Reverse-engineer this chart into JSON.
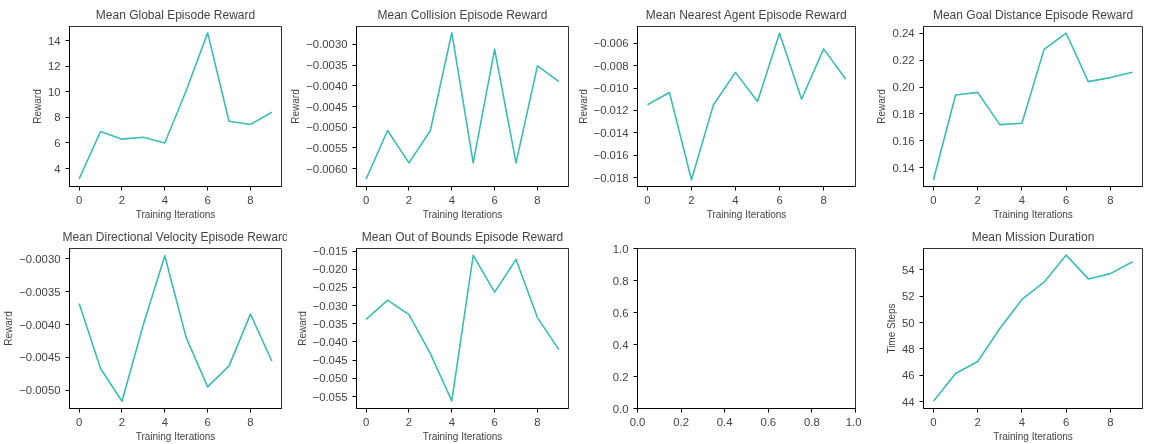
{
  "chart_data": [
    {
      "type": "line",
      "title": "Mean Global Episode Reward",
      "xlabel": "Training Iterations",
      "ylabel": "Reward",
      "x": [
        0,
        1,
        2,
        3,
        4,
        5,
        6,
        7,
        8,
        9
      ],
      "series": [
        {
          "color": "#3bbdb5",
          "values": [
            3.2,
            6.9,
            6.3,
            6.45,
            6.0,
            10.1,
            14.6,
            7.7,
            7.45,
            8.4
          ]
        }
      ],
      "xlim": [
        -0.45,
        9.45
      ],
      "ylim": [
        2.6,
        15.1
      ],
      "xticks": [
        0,
        2,
        4,
        6,
        8
      ],
      "yticks": [
        4,
        6,
        8,
        10,
        12,
        14
      ],
      "grid": false
    },
    {
      "type": "line",
      "title": "Mean Collision Episode Reward",
      "xlabel": "Training Iterations",
      "ylabel": "Reward",
      "x": [
        0,
        1,
        2,
        3,
        4,
        5,
        6,
        7,
        8,
        9
      ],
      "series": [
        {
          "color": "#3bbdb5",
          "values": [
            -0.00625,
            -0.00508,
            -0.00586,
            -0.00508,
            -0.00272,
            -0.00586,
            -0.00312,
            -0.00586,
            -0.00352,
            -0.0039
          ]
        }
      ],
      "xlim": [
        -0.45,
        9.45
      ],
      "ylim": [
        -0.00643,
        -0.00257
      ],
      "xticks": [
        0,
        2,
        4,
        6,
        8
      ],
      "yticks": [
        {
          "value": -0.006,
          "label": "−0.0060"
        },
        {
          "value": -0.0055,
          "label": "−0.0055"
        },
        {
          "value": -0.005,
          "label": "−0.0050"
        },
        {
          "value": -0.0045,
          "label": "−0.0045"
        },
        {
          "value": -0.004,
          "label": "−0.0040"
        },
        {
          "value": -0.0035,
          "label": "−0.0035"
        },
        {
          "value": -0.003,
          "label": "−0.0030"
        }
      ],
      "grid": false
    },
    {
      "type": "line",
      "title": "Mean Nearest Agent Episode Reward",
      "xlabel": "Training Iterations",
      "ylabel": "Reward",
      "x": [
        0,
        1,
        2,
        3,
        4,
        5,
        6,
        7,
        8,
        9
      ],
      "series": [
        {
          "color": "#3bbdb5",
          "values": [
            -0.0115,
            -0.0104,
            -0.0182,
            -0.0115,
            -0.0086,
            -0.0112,
            -0.0051,
            -0.011,
            -0.0065,
            -0.0092
          ]
        }
      ],
      "xlim": [
        -0.45,
        9.45
      ],
      "ylim": [
        -0.0188,
        -0.0045
      ],
      "xticks": [
        0,
        2,
        4,
        6,
        8
      ],
      "yticks": [
        {
          "value": -0.018,
          "label": "−0.018"
        },
        {
          "value": -0.016,
          "label": "−0.016"
        },
        {
          "value": -0.014,
          "label": "−0.014"
        },
        {
          "value": -0.012,
          "label": "−0.012"
        },
        {
          "value": -0.01,
          "label": "−0.010"
        },
        {
          "value": -0.008,
          "label": "−0.008"
        },
        {
          "value": -0.006,
          "label": "−0.006"
        }
      ],
      "grid": false
    },
    {
      "type": "line",
      "title": "Mean Goal Distance Episode Reward",
      "xlabel": "Training Iterations",
      "ylabel": "Reward",
      "x": [
        0,
        1,
        2,
        3,
        4,
        5,
        6,
        7,
        8,
        9
      ],
      "series": [
        {
          "color": "#3bbdb5",
          "values": [
            0.131,
            0.194,
            0.196,
            0.172,
            0.173,
            0.228,
            0.24,
            0.204,
            0.207,
            0.211
          ]
        }
      ],
      "xlim": [
        -0.45,
        9.45
      ],
      "ylim": [
        0.126,
        0.245
      ],
      "xticks": [
        0,
        2,
        4,
        6,
        8
      ],
      "yticks": [
        {
          "value": 0.14,
          "label": "0.14"
        },
        {
          "value": 0.16,
          "label": "0.16"
        },
        {
          "value": 0.18,
          "label": "0.18"
        },
        {
          "value": 0.2,
          "label": "0.20"
        },
        {
          "value": 0.22,
          "label": "0.22"
        },
        {
          "value": 0.24,
          "label": "0.24"
        }
      ],
      "grid": false
    },
    {
      "type": "line",
      "title": "Mean Directional Velocity Episode Reward",
      "xlabel": "Training Iterations",
      "ylabel": "Reward",
      "x": [
        0,
        1,
        2,
        3,
        4,
        5,
        6,
        7,
        8,
        9
      ],
      "series": [
        {
          "color": "#3bbdb5",
          "values": [
            -0.00368,
            -0.00467,
            -0.00517,
            -0.004,
            -0.00295,
            -0.0042,
            -0.00495,
            -0.00463,
            -0.00384,
            -0.00456
          ]
        }
      ],
      "xlim": [
        -0.45,
        9.45
      ],
      "ylim": [
        -0.00528,
        -0.00284
      ],
      "xticks": [
        0,
        2,
        4,
        6,
        8
      ],
      "yticks": [
        {
          "value": -0.005,
          "label": "−0.0050"
        },
        {
          "value": -0.0045,
          "label": "−0.0045"
        },
        {
          "value": -0.004,
          "label": "−0.0040"
        },
        {
          "value": -0.0035,
          "label": "−0.0035"
        },
        {
          "value": -0.003,
          "label": "−0.0030"
        }
      ],
      "grid": false
    },
    {
      "type": "line",
      "title": "Mean Out of Bounds Episode Reward",
      "xlabel": "Training Iterations",
      "ylabel": "Reward",
      "x": [
        0,
        1,
        2,
        3,
        4,
        5,
        6,
        7,
        8,
        9
      ],
      "series": [
        {
          "color": "#3bbdb5",
          "values": [
            -0.0338,
            -0.0285,
            -0.0325,
            -0.0432,
            -0.0562,
            -0.0162,
            -0.0263,
            -0.0173,
            -0.0333,
            -0.0421
          ]
        }
      ],
      "xlim": [
        -0.45,
        9.45
      ],
      "ylim": [
        -0.0583,
        -0.0143
      ],
      "xticks": [
        0,
        2,
        4,
        6,
        8
      ],
      "yticks": [
        {
          "value": -0.055,
          "label": "−0.055"
        },
        {
          "value": -0.05,
          "label": "−0.050"
        },
        {
          "value": -0.045,
          "label": "−0.045"
        },
        {
          "value": -0.04,
          "label": "−0.040"
        },
        {
          "value": -0.035,
          "label": "−0.035"
        },
        {
          "value": -0.03,
          "label": "−0.030"
        },
        {
          "value": -0.025,
          "label": "−0.025"
        },
        {
          "value": -0.02,
          "label": "−0.020"
        },
        {
          "value": -0.015,
          "label": "−0.015"
        }
      ],
      "grid": false
    },
    {
      "type": "line",
      "xlim": [
        0,
        1
      ],
      "ylim": [
        0,
        1
      ],
      "xticks": [
        {
          "value": 0,
          "label": "0.0"
        },
        {
          "value": 0.2,
          "label": "0.2"
        },
        {
          "value": 0.4,
          "label": "0.4"
        },
        {
          "value": 0.6,
          "label": "0.6"
        },
        {
          "value": 0.8,
          "label": "0.8"
        },
        {
          "value": 1,
          "label": "1.0"
        }
      ],
      "yticks": [
        {
          "value": 0,
          "label": "0.0"
        },
        {
          "value": 0.2,
          "label": "0.2"
        },
        {
          "value": 0.4,
          "label": "0.4"
        },
        {
          "value": 0.6,
          "label": "0.6"
        },
        {
          "value": 0.8,
          "label": "0.8"
        },
        {
          "value": 1,
          "label": "1.0"
        }
      ],
      "grid": false
    },
    {
      "type": "line",
      "title": "Mean Mission Duration",
      "xlabel": "Training Iterations",
      "ylabel": "Time Steps",
      "x": [
        0,
        1,
        2,
        3,
        4,
        5,
        6,
        7,
        8,
        9
      ],
      "series": [
        {
          "color": "#3bbdb5",
          "values": [
            44.05,
            46.15,
            47.05,
            49.55,
            51.75,
            53.05,
            55.1,
            53.3,
            53.7,
            54.6
          ]
        }
      ],
      "xlim": [
        -0.45,
        9.45
      ],
      "ylim": [
        43.5,
        55.6
      ],
      "xticks": [
        0,
        2,
        4,
        6,
        8
      ],
      "yticks": [
        44,
        46,
        48,
        50,
        52,
        54
      ],
      "grid": false
    }
  ]
}
